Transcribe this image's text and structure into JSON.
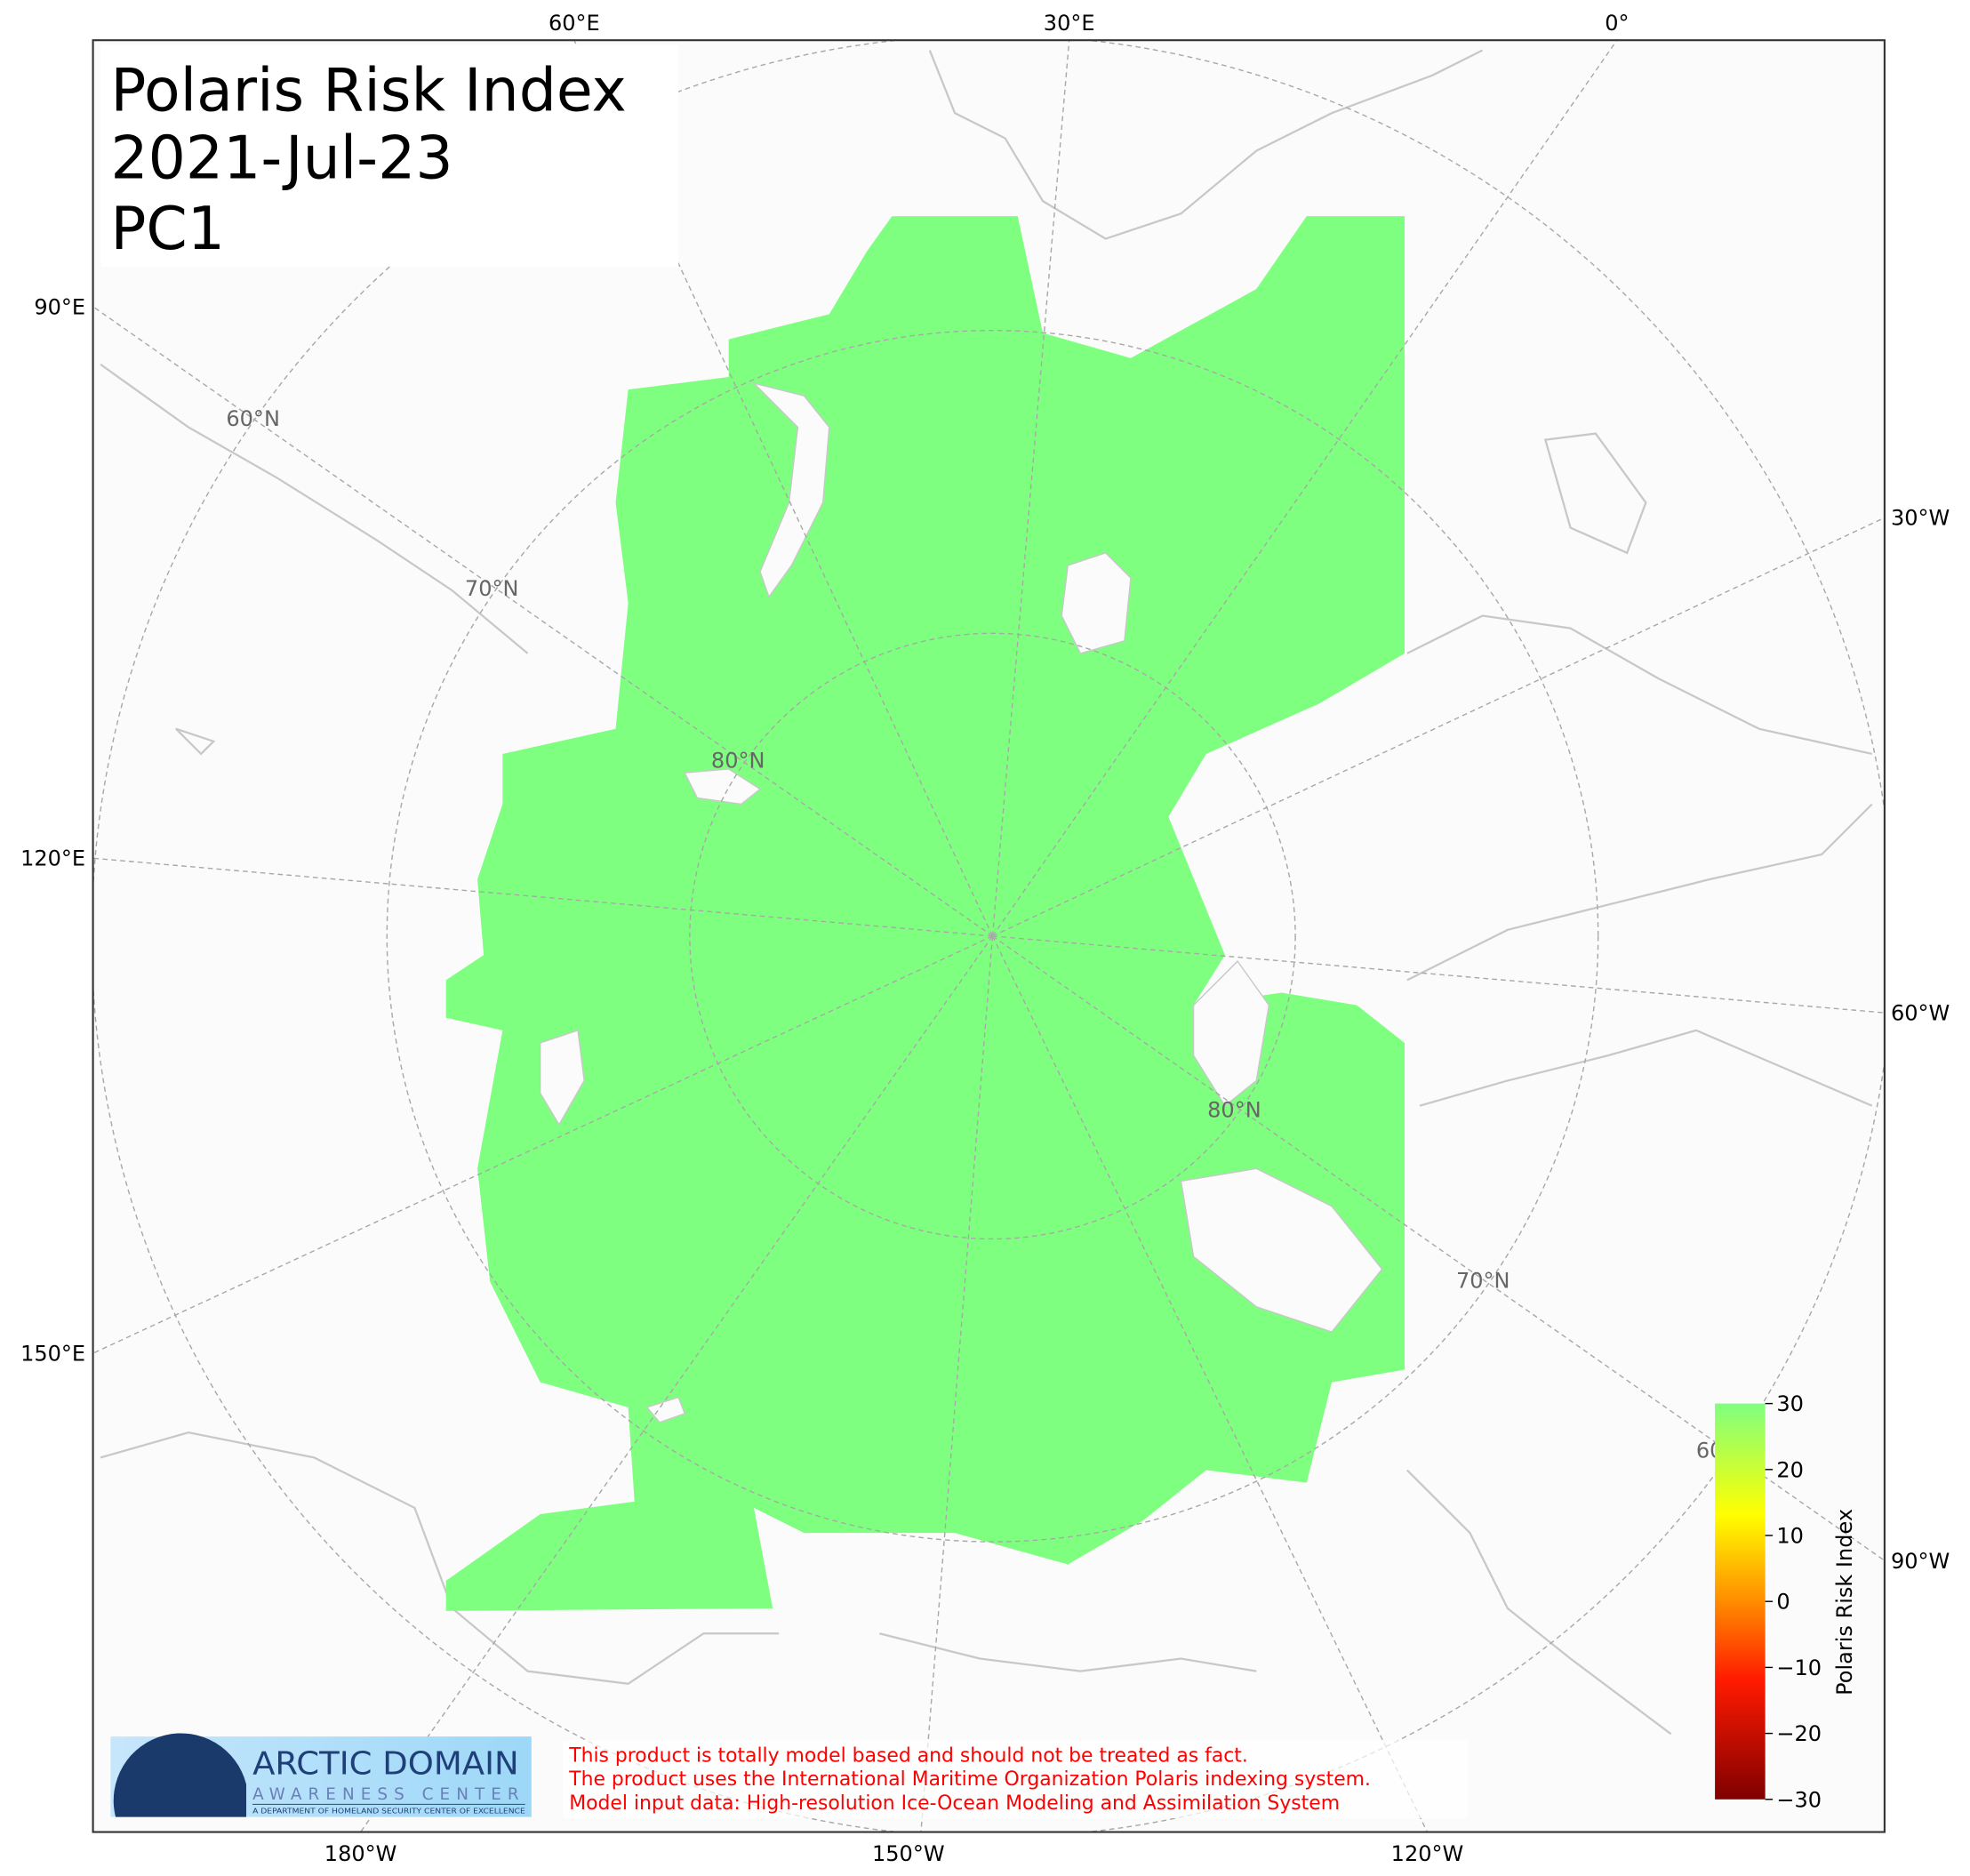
{
  "title": {
    "line1": "Polaris Risk Index",
    "line2": "2021-Jul-23",
    "line3": "PC1"
  },
  "map": {
    "projection": "north polar stereographic",
    "data_color": "#7fff7f",
    "land_color": "#fbfbfb",
    "coast_color": "#c8c8c8",
    "meridian_labels": {
      "top": [
        "60°E",
        "30°E",
        "0°"
      ],
      "left": [
        "90°E",
        "120°E",
        "150°E"
      ],
      "right": [
        "30°W",
        "60°W",
        "90°W"
      ],
      "bottom": [
        "180°W",
        "150°W",
        "120°W"
      ]
    },
    "latitude_labels": [
      "60°N",
      "70°N",
      "80°N",
      "80°N",
      "70°N",
      "60°N"
    ]
  },
  "colorbar": {
    "label": "Polaris Risk Index",
    "min": -30,
    "max": 30,
    "ticks": [
      "30",
      "20",
      "10",
      "0",
      "−10",
      "−20",
      "−30"
    ],
    "colors": [
      "#800000",
      "#ff1a00",
      "#ff8c00",
      "#ffff00",
      "#7fff7f"
    ]
  },
  "logo": {
    "line1": "ARCTIC DOMAIN",
    "line2": "AWARENESS CENTER",
    "line3": "A DEPARTMENT OF HOMELAND SECURITY CENTER OF EXCELLENCE"
  },
  "disclaimer": [
    "This product is totally model based and should not be treated as fact.",
    "The product uses the International Maritime Organization Polaris indexing system.",
    "Model input data: High-resolution Ice-Ocean Modeling and Assimilation System"
  ]
}
